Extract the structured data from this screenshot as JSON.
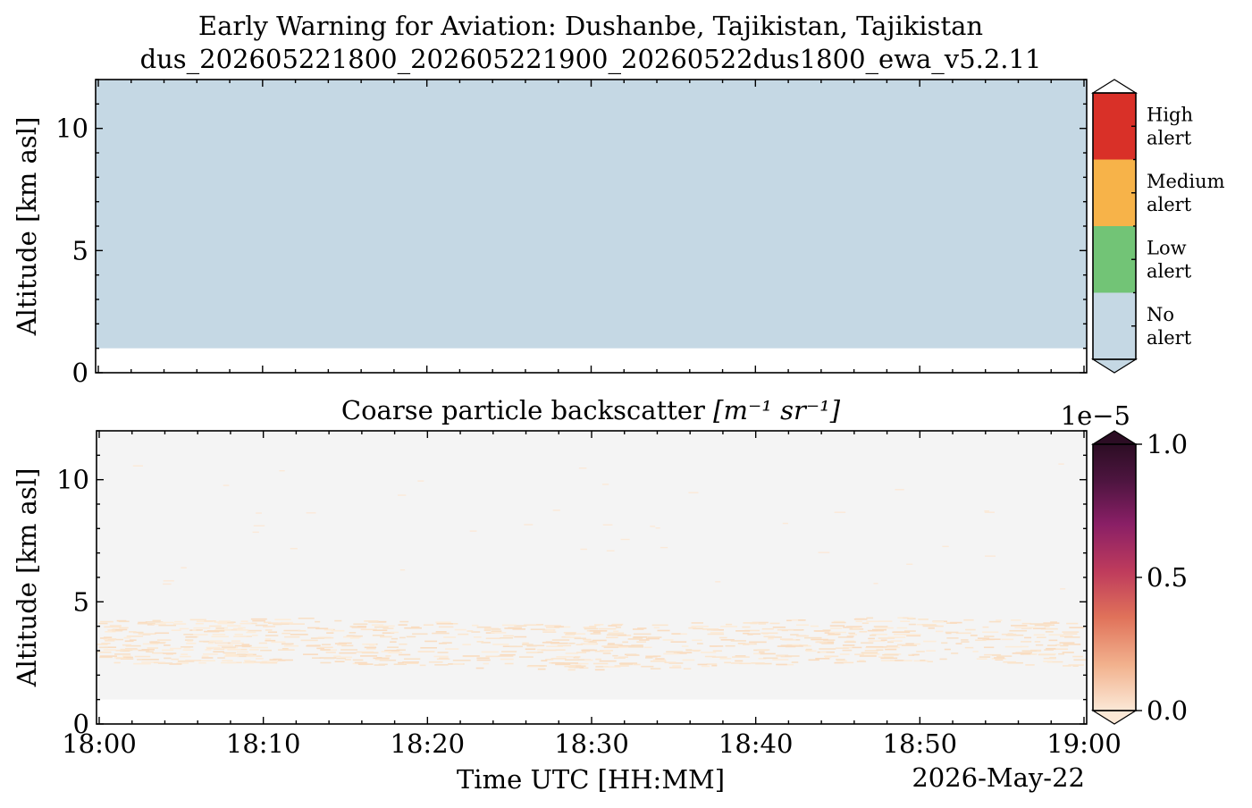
{
  "figure": {
    "title_line1": "Early Warning for Aviation: Dushanbe, Tajikistan, Tajikistan",
    "title_line2": "dus_202605221800_202605221900_20260522dus1800_ewa_v5.2.11"
  },
  "chart_data": [
    {
      "type": "heatmap",
      "name": "alert-panel",
      "title": "",
      "xlabel": "",
      "ylabel": "Altitude [km asl]",
      "xlim": [
        "18:00",
        "19:00"
      ],
      "ylim": [
        0,
        12
      ],
      "yticks": [
        0,
        5,
        10
      ],
      "fill_color": "#c5d8e4",
      "data_bottom_km": 1.0,
      "alert_level": "No alert",
      "colorbar": {
        "categories": [
          {
            "label": "High alert",
            "color": "#d93028"
          },
          {
            "label": "Medium alert",
            "color": "#f7b349"
          },
          {
            "label": "Low alert",
            "color": "#72c476"
          },
          {
            "label": "No alert",
            "color": "#c5d8e4"
          }
        ]
      }
    },
    {
      "type": "heatmap",
      "name": "backscatter-panel",
      "title_text": "Coarse particle backscatter ",
      "title_unit": "[m⁻¹ sr⁻¹]",
      "xlabel": "Time UTC [HH:MM]",
      "date_label": "2026-May-22",
      "ylabel": "Altitude [km asl]",
      "xticks": [
        "18:00",
        "18:10",
        "18:20",
        "18:30",
        "18:40",
        "18:50",
        "19:00"
      ],
      "ylim": [
        0,
        12
      ],
      "yticks": [
        0,
        5,
        10
      ],
      "background_color": "#f4f4f4",
      "data_bottom_km": 1.0,
      "aerosol_layer_km": [
        2.0,
        4.5
      ],
      "colorbar": {
        "offset_label": "1e−5",
        "ticks": [
          {
            "value": 0.0,
            "label": "0.0"
          },
          {
            "value": 0.5,
            "label": "0.5"
          },
          {
            "value": 1.0,
            "label": "1.0"
          }
        ],
        "colors": [
          "#fbe8d6",
          "#f2b28e",
          "#e0725a",
          "#bf3c5c",
          "#8a1f66",
          "#4e1540",
          "#2c0d24"
        ]
      }
    }
  ]
}
